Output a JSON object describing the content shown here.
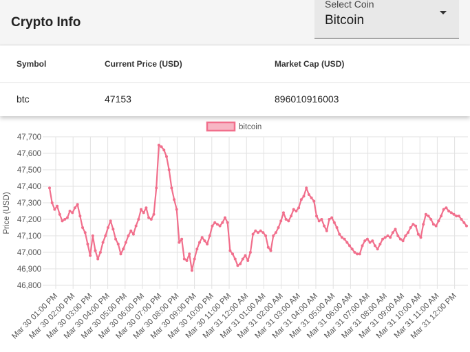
{
  "appbar": {
    "title": "Crypto Info"
  },
  "coin_select": {
    "label": "Select Coin",
    "value": "Bitcoin"
  },
  "table": {
    "headers": [
      "Symbol",
      "Current Price (USD)",
      "Market Cap (USD)"
    ],
    "row": [
      "btc",
      "47153",
      "896010916003"
    ]
  },
  "colors": {
    "series": "#f16f8c",
    "series_fill": "#f7b6c4",
    "grid": "#e2e2e2"
  },
  "chart_data": {
    "type": "line",
    "legend": "top-center",
    "grid": true,
    "ylabel": "Price (USD)",
    "ylim": [
      46800,
      47700
    ],
    "yticks": [
      "47,700",
      "47,600",
      "47,500",
      "47,400",
      "47,300",
      "47,200",
      "47,100",
      "47,000",
      "46,900",
      "46,800"
    ],
    "xticks": [
      "Mar 30 01:00 PM",
      "Mar 30 02:00 PM",
      "Mar 30 03:00 PM",
      "Mar 30 04:00 PM",
      "Mar 30 05:00 PM",
      "Mar 30 06:00 PM",
      "Mar 30 07:00 PM",
      "Mar 30 08:00 PM",
      "Mar 30 09:00 PM",
      "Mar 30 10:00 PM",
      "Mar 30 11:00 PM",
      "Mar 31 12:00 AM",
      "Mar 31 01:00 AM",
      "Mar 31 02:00 AM",
      "Mar 31 03:00 AM",
      "Mar 31 04:00 AM",
      "Mar 31 05:00 AM",
      "Mar 31 06:00 AM",
      "Mar 31 07:00 AM",
      "Mar 31 08:00 AM",
      "Mar 31 09:00 AM",
      "Mar 31 10:00 AM",
      "Mar 31 11:00 AM",
      "Mar 31 12:00 PM"
    ],
    "series": [
      {
        "name": "bitcoin",
        "values": [
          47390,
          47300,
          47260,
          47280,
          47230,
          47190,
          47200,
          47210,
          47250,
          47240,
          47270,
          47290,
          47220,
          47150,
          47120,
          47050,
          46980,
          47100,
          47010,
          46960,
          47000,
          47060,
          47100,
          47150,
          47190,
          47140,
          47080,
          47050,
          46990,
          47020,
          47060,
          47100,
          47130,
          47110,
          47160,
          47200,
          47260,
          47240,
          47270,
          47210,
          47200,
          47230,
          47390,
          47650,
          47640,
          47620,
          47580,
          47500,
          47390,
          47320,
          47260,
          47060,
          47080,
          46960,
          46950,
          46990,
          46890,
          46960,
          47020,
          47060,
          47090,
          47070,
          47050,
          47100,
          47160,
          47180,
          47170,
          47160,
          47180,
          47210,
          47180,
          47010,
          46990,
          46960,
          46920,
          46930,
          46960,
          46980,
          46950,
          47000,
          47110,
          47130,
          47120,
          47130,
          47120,
          47100,
          47030,
          47010,
          47100,
          47120,
          47150,
          47190,
          47240,
          47200,
          47190,
          47220,
          47260,
          47250,
          47270,
          47320,
          47340,
          47390,
          47350,
          47330,
          47310,
          47220,
          47190,
          47200,
          47160,
          47130,
          47200,
          47210,
          47180,
          47150,
          47110,
          47090,
          47080,
          47060,
          47040,
          47020,
          47000,
          46990,
          46990,
          47040,
          47070,
          47080,
          47060,
          47070,
          47040,
          47020,
          47050,
          47080,
          47090,
          47100,
          47090,
          47120,
          47140,
          47100,
          47080,
          47070,
          47100,
          47120,
          47150,
          47170,
          47160,
          47110,
          47090,
          47170,
          47230,
          47220,
          47200,
          47170,
          47160,
          47190,
          47220,
          47260,
          47270,
          47250,
          47240,
          47230,
          47220,
          47220,
          47200,
          47180,
          47160
        ]
      }
    ]
  }
}
